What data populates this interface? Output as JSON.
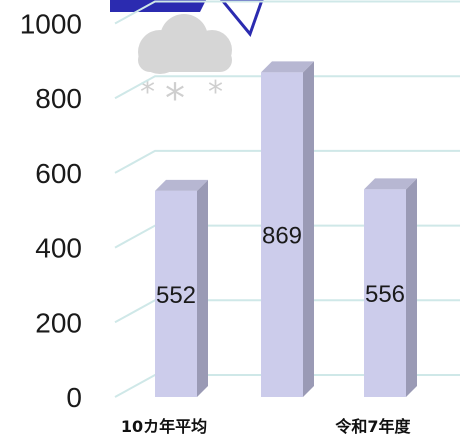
{
  "chart_data": {
    "type": "bar",
    "categories": [
      "10カ年平均",
      "",
      "令和7年度"
    ],
    "values": [
      552,
      869,
      556
    ],
    "data_labels": [
      "552",
      "869",
      "556"
    ],
    "y_ticks": [
      "0",
      "200",
      "400",
      "600",
      "800",
      "1000"
    ],
    "ylim": [
      0,
      1000
    ],
    "title": "",
    "xlabel": "",
    "ylabel": "",
    "grid": true,
    "legend": "none"
  },
  "colors": {
    "bar_front": "#cccceb",
    "bar_side": "#9a9ab5",
    "bar_top": "#b7b7d2",
    "gridline": "#cfe8e8",
    "header_band": "#2b2bb0",
    "cloud": "#d6d6d6"
  },
  "decoration": {
    "icon": "snow-cloud-icon"
  }
}
